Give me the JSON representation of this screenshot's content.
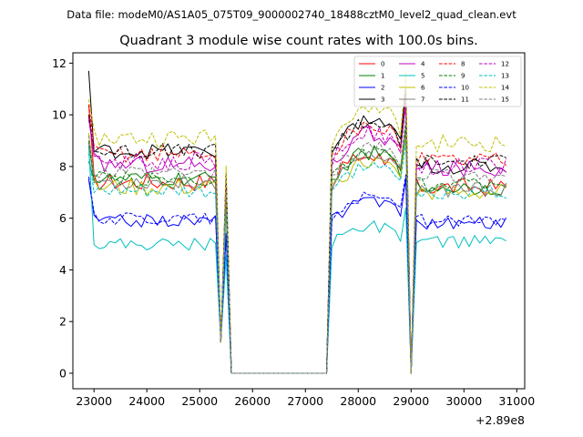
{
  "suptitle": "Data file: modeM0/AS1A05_075T09_9000002740_18488cztM0_level2_quad_clean.evt",
  "chart_data": {
    "type": "line",
    "title": "Quadrant 3 module wise count rates with 100.0s bins.",
    "xlabel": "",
    "ylabel": "",
    "x_offset_label": "+2.89e8",
    "x_offset": 289000000,
    "xlim": [
      22600,
      31150
    ],
    "ylim": [
      -0.6,
      12.4
    ],
    "xticks": [
      23000,
      24000,
      25000,
      26000,
      27000,
      28000,
      29000,
      30000,
      31000
    ],
    "yticks": [
      0,
      2,
      4,
      6,
      8,
      10,
      12
    ],
    "legend_position": "top-right",
    "segments": [
      {
        "x_start": 22900,
        "x_end": 25500
      },
      {
        "x_start": 27500,
        "x_end": 28950
      },
      {
        "x_start": 29050,
        "x_end": 30850
      }
    ],
    "series": [
      {
        "name": "0",
        "color": "#ff0000",
        "dash": "solid",
        "level": 7.4,
        "start": 10.4,
        "noise": 0.35,
        "s3": 7.2
      },
      {
        "name": "1",
        "color": "#008000",
        "dash": "solid",
        "level": 7.5,
        "start": 8.2,
        "noise": 0.3,
        "s3": 7.2
      },
      {
        "name": "2",
        "color": "#0000ff",
        "dash": "solid",
        "level": 5.9,
        "start": 7.5,
        "noise": 0.25,
        "s3": 5.8
      },
      {
        "name": "3",
        "color": "#000000",
        "dash": "solid",
        "level": 8.6,
        "start": 11.7,
        "noise": 0.3,
        "s3": 8.0
      },
      {
        "name": "4",
        "color": "#bf00bf",
        "dash": "solid",
        "level": 8.1,
        "start": 9.9,
        "noise": 0.35,
        "s3": 7.9
      },
      {
        "name": "5",
        "color": "#00bfbf",
        "dash": "solid",
        "level": 5.0,
        "start": 8.8,
        "noise": 0.25,
        "s3": 5.1
      },
      {
        "name": "6",
        "color": "#bfbf00",
        "dash": "solid",
        "level": 7.2,
        "start": 9.3,
        "noise": 0.35,
        "s3": 7.0
      },
      {
        "name": "7",
        "color": "#808080",
        "dash": "solid",
        "level": 7.4,
        "start": 8.9,
        "noise": 0.3,
        "s3": 7.1
      },
      {
        "name": "8",
        "color": "#ff0000",
        "dash": "dashed",
        "level": 8.5,
        "start": 10.4,
        "noise": 0.35,
        "s3": 8.3
      },
      {
        "name": "9",
        "color": "#008000",
        "dash": "dashed",
        "level": 7.5,
        "start": 9.0,
        "noise": 0.3,
        "s3": 7.3
      },
      {
        "name": "10",
        "color": "#0000ff",
        "dash": "dashed",
        "level": 6.0,
        "start": 7.6,
        "noise": 0.25,
        "s3": 5.9
      },
      {
        "name": "11",
        "color": "#000000",
        "dash": "dashed",
        "level": 8.6,
        "start": 10.0,
        "noise": 0.3,
        "s3": 8.2
      },
      {
        "name": "12",
        "color": "#bf00bf",
        "dash": "dashed",
        "level": 8.2,
        "start": 9.8,
        "noise": 0.35,
        "s3": 8.0
      },
      {
        "name": "13",
        "color": "#00bfbf",
        "dash": "dashed",
        "level": 7.0,
        "start": 8.5,
        "noise": 0.3,
        "s3": 7.0
      },
      {
        "name": "14",
        "color": "#bfbf00",
        "dash": "dashed",
        "level": 9.1,
        "start": 10.6,
        "noise": 0.35,
        "s3": 8.9
      },
      {
        "name": "15",
        "color": "#808080",
        "dash": "dashed",
        "level": 7.7,
        "start": 9.2,
        "noise": 0.3,
        "s3": 7.6
      }
    ]
  }
}
